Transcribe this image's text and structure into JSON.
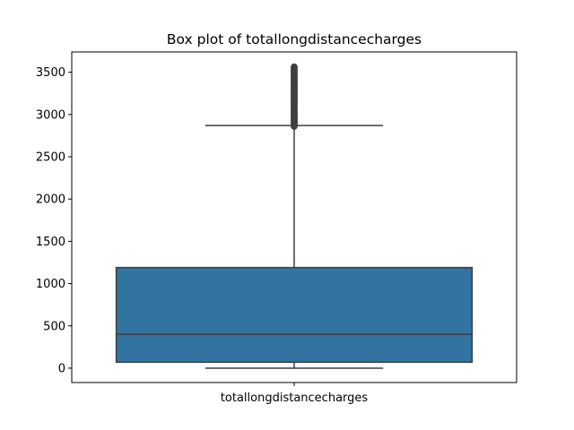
{
  "chart_data": {
    "type": "box",
    "title": "Box plot of totallongdistancecharges",
    "xlabel": "",
    "ylabel": "",
    "categories": [
      "totallongdistancecharges"
    ],
    "yticks": [
      0,
      500,
      1000,
      1500,
      2000,
      2500,
      3000,
      3500
    ],
    "ylim": [
      -170,
      3740
    ],
    "grid": false,
    "box": {
      "whisker_low": 0,
      "q1": 70,
      "median": 400,
      "q3": 1190,
      "whisker_high": 2870,
      "outliers_min": 2860,
      "outliers_max": 3570
    },
    "colors": {
      "box_fill": "#3274a1",
      "line": "#3f3f3f"
    }
  }
}
